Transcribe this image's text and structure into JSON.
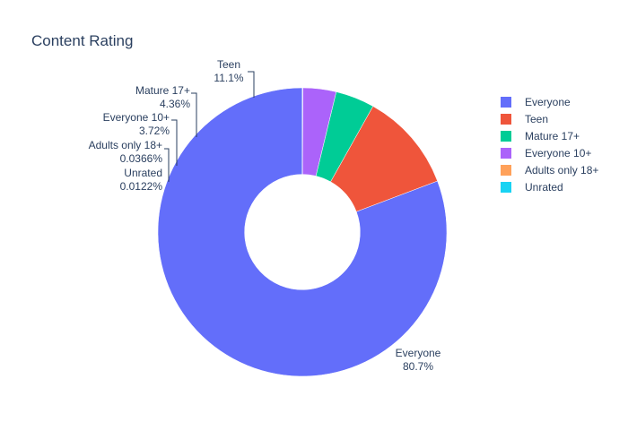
{
  "chart_data": {
    "type": "pie",
    "hole": 0.4,
    "title": "Content Rating",
    "legend_position": "right",
    "slices": [
      {
        "label": "Everyone",
        "percent_text": "80.7%",
        "value": 80.7,
        "color": "#636efa"
      },
      {
        "label": "Teen",
        "percent_text": "11.1%",
        "value": 11.1,
        "color": "#EF553B"
      },
      {
        "label": "Mature 17+",
        "percent_text": "4.36%",
        "value": 4.36,
        "color": "#00cc96"
      },
      {
        "label": "Everyone 10+",
        "percent_text": "3.72%",
        "value": 3.72,
        "color": "#ab63fa"
      },
      {
        "label": "Adults only 18+",
        "percent_text": "0.0366%",
        "value": 0.0366,
        "color": "#FFA15A"
      },
      {
        "label": "Unrated",
        "percent_text": "0.0122%",
        "value": 0.0122,
        "color": "#19d3f3"
      }
    ]
  }
}
